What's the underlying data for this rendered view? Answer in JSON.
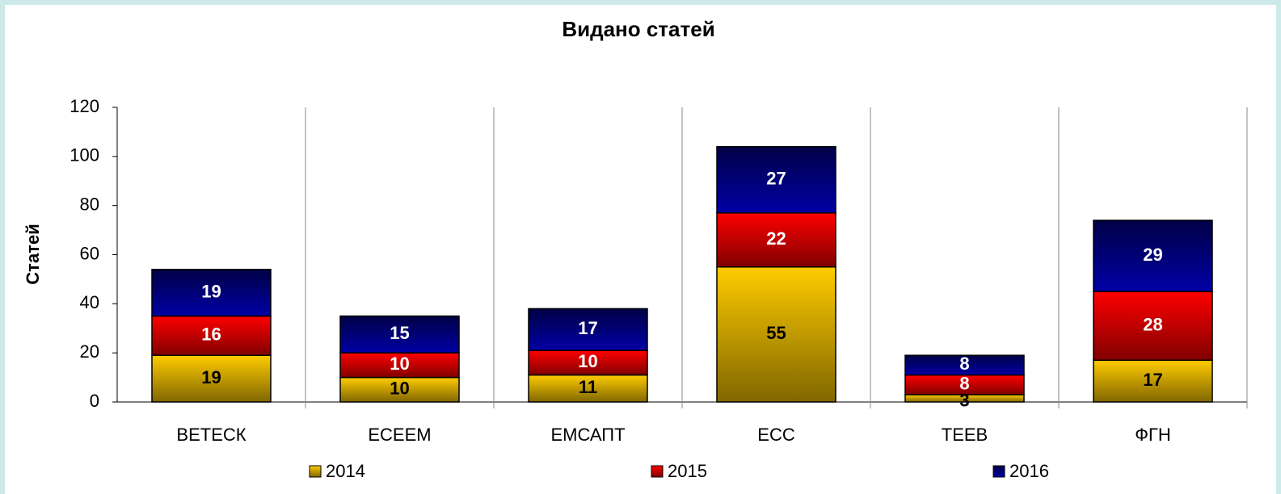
{
  "chart_data": {
    "type": "stacked_bar",
    "title": "Видано статей",
    "y_label": "Статей",
    "categories": [
      "ВЕТЕСК",
      "ЕСЕЕМ",
      "ЕМСАПТ",
      "ЕСС",
      "ТЕЕВ",
      "ФГН"
    ],
    "series": [
      {
        "name": "2014",
        "color": "#ffcc00",
        "values": [
          19,
          10,
          11,
          55,
          3,
          17
        ]
      },
      {
        "name": "2015",
        "color": "#ff0000",
        "values": [
          16,
          10,
          10,
          22,
          8,
          28
        ]
      },
      {
        "name": "2016",
        "color": "#000080",
        "values": [
          19,
          15,
          17,
          27,
          8,
          29
        ]
      }
    ],
    "ylim": [
      0,
      120
    ],
    "yticks": [
      0,
      20,
      40,
      60,
      80,
      100,
      120
    ],
    "legend": "bottom"
  }
}
